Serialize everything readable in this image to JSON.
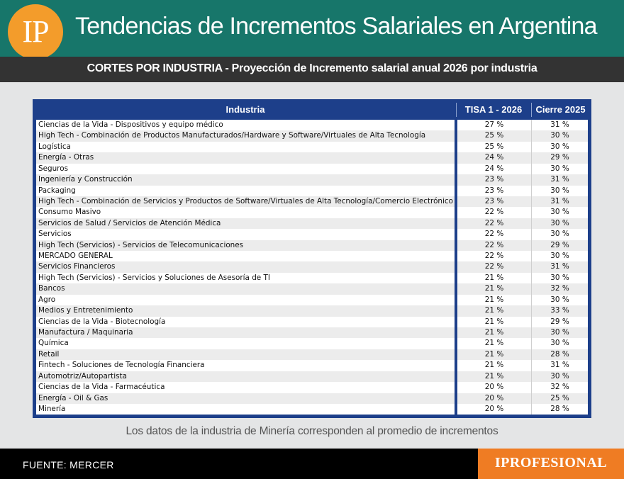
{
  "header": {
    "logo_text": "IP",
    "title": "Tendencias de Incrementos Salariales en Argentina"
  },
  "subheader": {
    "text": "CORTES POR INDUSTRIA - Proyección de Incremento salarial anual 2026 por industria"
  },
  "table": {
    "columns": [
      "Industria",
      "TISA 1 - 2026",
      "Cierre 2025"
    ],
    "rows": [
      [
        "Ciencias de la Vida - Dispositivos y equipo médico",
        "27 %",
        "31 %"
      ],
      [
        "High Tech - Combinación de Productos Manufacturados/Hardware y Software/Virtuales de Alta Tecnología",
        "25 %",
        "30 %"
      ],
      [
        "Logística",
        "25 %",
        "30 %"
      ],
      [
        "Energía - Otras",
        "24 %",
        "29 %"
      ],
      [
        "Seguros",
        "24 %",
        "30 %"
      ],
      [
        "Ingeniería y Construcción",
        "23 %",
        "31 %"
      ],
      [
        "Packaging",
        "23 %",
        "30 %"
      ],
      [
        "High Tech - Combinación de Servicios y Productos de Software/Virtuales de Alta Tecnología/Comercio Electrónico",
        "23 %",
        "31 %"
      ],
      [
        "Consumo Masivo",
        "22 %",
        "30 %"
      ],
      [
        "Servicios de Salud / Servicios de Atención Médica",
        "22 %",
        "30 %"
      ],
      [
        "Servicios",
        "22 %",
        "30 %"
      ],
      [
        "High Tech (Servicios) - Servicios de Telecomunicaciones",
        "22 %",
        "29 %"
      ],
      [
        "MERCADO GENERAL",
        "22 %",
        "30 %"
      ],
      [
        "Servicios Financieros",
        "22 %",
        "31 %"
      ],
      [
        "High Tech (Servicios) - Servicios y Soluciones de Asesoría de TI",
        "21 %",
        "30 %"
      ],
      [
        "Bancos",
        "21 %",
        "32 %"
      ],
      [
        "Agro",
        "21 %",
        "30 %"
      ],
      [
        "Medios y Entretenimiento",
        "21 %",
        "33 %"
      ],
      [
        "Ciencias de la Vida - Biotecnología",
        "21 %",
        "29 %"
      ],
      [
        "Manufactura / Maquinaria",
        "21 %",
        "30 %"
      ],
      [
        "Química",
        "21 %",
        "30 %"
      ],
      [
        "Retail",
        "21 %",
        "28 %"
      ],
      [
        "Fintech - Soluciones de Tecnología Financiera",
        "21 %",
        "31 %"
      ],
      [
        "Automotriz/Autopartista",
        "21 %",
        "30 %"
      ],
      [
        "Ciencias de la Vida - Farmacéutica",
        "20 %",
        "32 %"
      ],
      [
        "Energía - Oil & Gas",
        "20 %",
        "25 %"
      ],
      [
        "Minería",
        "20 %",
        "28 %"
      ]
    ]
  },
  "note": "Los datos de la industria de Minería corresponden al promedio de incrementos",
  "footer": {
    "source": "FUENTE: MERCER",
    "brand": "IPROFESIONAL"
  },
  "colors": {
    "header_green": "#17766a",
    "logo_orange": "#f39c2b",
    "table_blue": "#1d3f8a",
    "brand_orange": "#ef7c23"
  }
}
